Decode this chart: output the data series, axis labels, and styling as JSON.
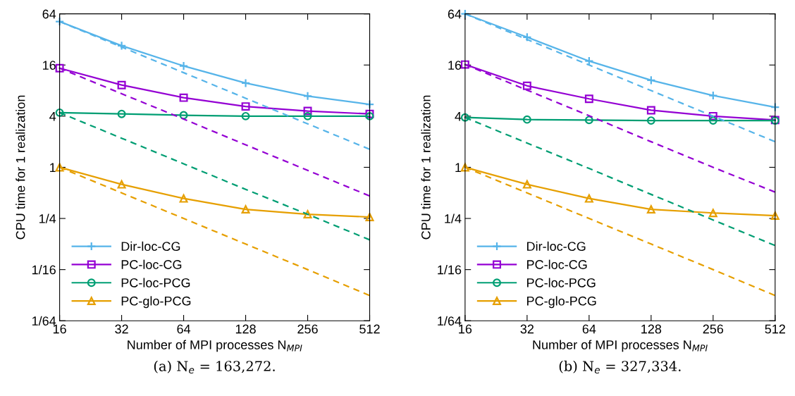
{
  "chart_data": [
    {
      "type": "line",
      "xlabel": "Number of MPI processes N$_{MPI}$",
      "ylabel": "CPU time for 1 realization",
      "log": "xy",
      "grid": false,
      "legend": "bottom left",
      "x": [
        16,
        32,
        64,
        128,
        256,
        512
      ],
      "xlim": [
        16,
        512
      ],
      "xticks": [
        16,
        32,
        64,
        128,
        256,
        512
      ],
      "ylim": [
        0.015625,
        64
      ],
      "yticks": [
        {
          "value": 0.015625,
          "label": "1/64"
        },
        {
          "value": 0.0625,
          "label": "1/16"
        },
        {
          "value": 0.25,
          "label": "1/4"
        },
        1,
        4,
        16,
        64
      ],
      "annotations": [
        "(a) N$_{e}$ = 163,272."
      ],
      "series": [
        {
          "name": "Dir-loc-CG",
          "color": "#56b4e9",
          "marker": "cross",
          "line_style": "solid",
          "values": [
            52,
            27,
            15.6,
            9.8,
            6.9,
            5.5
          ]
        },
        {
          "name": "PC-loc-CG",
          "color": "#9400d3",
          "marker": "square",
          "line_style": "solid",
          "values": [
            14.7,
            9.3,
            6.6,
            5.2,
            4.6,
            4.25
          ]
        },
        {
          "name": "PC-loc-PCG",
          "color": "#009e73",
          "marker": "circle",
          "line_style": "solid",
          "values": [
            4.4,
            4.25,
            4.1,
            4.0,
            4.0,
            4.0
          ]
        },
        {
          "name": "PC-glo-PCG",
          "color": "#e69f00",
          "marker": "triangle",
          "line_style": "solid",
          "values": [
            1.0,
            0.63,
            0.43,
            0.32,
            0.28,
            0.26
          ]
        },
        {
          "color": "#56b4e9",
          "marker": "none",
          "line_style": "dashed",
          "values": [
            52,
            26,
            13,
            6.5,
            3.25,
            1.63
          ]
        },
        {
          "color": "#9400d3",
          "marker": "none",
          "line_style": "dashed",
          "values": [
            14.7,
            7.35,
            3.7,
            1.84,
            0.92,
            0.46
          ]
        },
        {
          "color": "#009e73",
          "marker": "none",
          "line_style": "dashed",
          "values": [
            4.4,
            2.2,
            1.1,
            0.55,
            0.28,
            0.14
          ]
        },
        {
          "color": "#e69f00",
          "marker": "none",
          "line_style": "dashed",
          "values": [
            1.0,
            0.5,
            0.25,
            0.125,
            0.0625,
            0.031
          ]
        }
      ]
    },
    {
      "type": "line",
      "xlabel": "Number of MPI processes N$_{MPI}$",
      "ylabel": "CPU time for 1 realization",
      "log": "xy",
      "grid": false,
      "legend": "bottom left",
      "x": [
        16,
        32,
        64,
        128,
        256,
        512
      ],
      "xlim": [
        16,
        512
      ],
      "xticks": [
        16,
        32,
        64,
        128,
        256,
        512
      ],
      "ylim": [
        0.015625,
        64
      ],
      "yticks": [
        {
          "value": 0.015625,
          "label": "1/64"
        },
        {
          "value": 0.0625,
          "label": "1/16"
        },
        {
          "value": 0.25,
          "label": "1/4"
        },
        1,
        4,
        16,
        64
      ],
      "annotations": [
        "(b) N$_{e}$ = 327,334."
      ],
      "series": [
        {
          "name": "Dir-loc-CG",
          "color": "#56b4e9",
          "marker": "cross",
          "line_style": "solid",
          "values": [
            64,
            34,
            17.8,
            10.6,
            7.0,
            5.1
          ]
        },
        {
          "name": "PC-loc-CG",
          "color": "#9400d3",
          "marker": "square",
          "line_style": "solid",
          "values": [
            16.2,
            9.1,
            6.4,
            4.7,
            4.0,
            3.6
          ]
        },
        {
          "name": "PC-loc-PCG",
          "color": "#009e73",
          "marker": "circle",
          "line_style": "solid",
          "values": [
            3.86,
            3.65,
            3.6,
            3.55,
            3.55,
            3.55
          ]
        },
        {
          "name": "PC-glo-PCG",
          "color": "#e69f00",
          "marker": "triangle",
          "line_style": "solid",
          "values": [
            1.0,
            0.63,
            0.43,
            0.32,
            0.29,
            0.27
          ]
        },
        {
          "color": "#56b4e9",
          "marker": "none",
          "line_style": "dashed",
          "values": [
            64,
            32,
            16,
            8,
            4,
            2.0
          ]
        },
        {
          "color": "#9400d3",
          "marker": "none",
          "line_style": "dashed",
          "values": [
            16.2,
            8.1,
            4.05,
            2.0,
            1.0,
            0.51
          ]
        },
        {
          "color": "#009e73",
          "marker": "none",
          "line_style": "dashed",
          "values": [
            3.86,
            1.93,
            0.97,
            0.48,
            0.24,
            0.12
          ]
        },
        {
          "color": "#e69f00",
          "marker": "none",
          "line_style": "dashed",
          "values": [
            1.0,
            0.5,
            0.25,
            0.125,
            0.0625,
            0.031
          ]
        }
      ]
    }
  ]
}
